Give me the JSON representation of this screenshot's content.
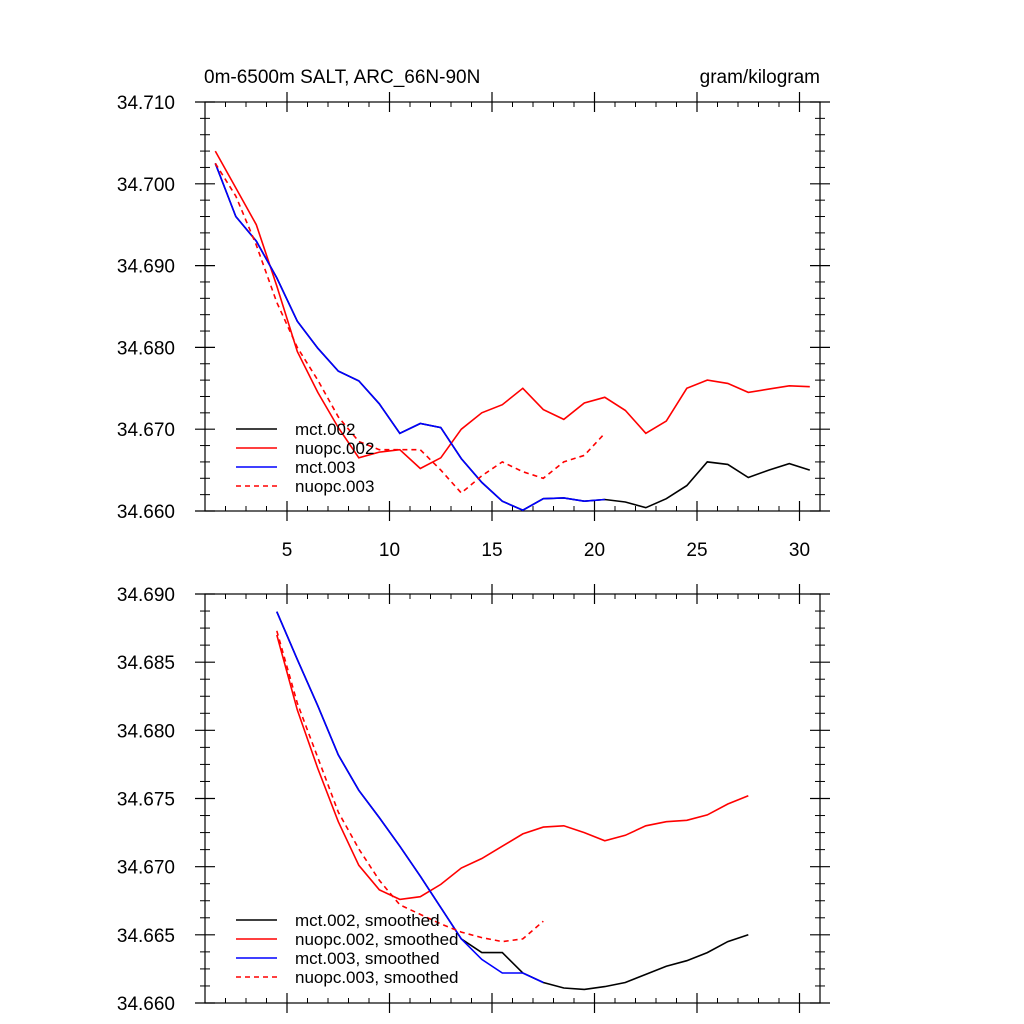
{
  "chart_data": [
    {
      "type": "line",
      "title_left": "0m-6500m SALT, ARC_66N-90N",
      "title_right": "gram/kilogram",
      "xlim": [
        1,
        31
      ],
      "ylim": [
        34.66,
        34.71
      ],
      "xticks": [
        5,
        10,
        15,
        20,
        25,
        30
      ],
      "xtick_labels": [
        "5",
        "10",
        "15",
        "20",
        "25",
        "30"
      ],
      "yticks": [
        34.66,
        34.67,
        34.68,
        34.69,
        34.7,
        34.71
      ],
      "ytick_labels": [
        "34.660",
        "34.670",
        "34.680",
        "34.690",
        "34.700",
        "34.710"
      ],
      "legend_position": "bottom-left",
      "series": [
        {
          "name": "mct.002",
          "color": "#000000",
          "dash": "solid",
          "x": [
            1.5,
            2.5,
            3.5,
            4.5,
            5.5,
            6.5,
            7.5,
            8.5,
            9.5,
            10.5,
            11.5,
            12.5,
            13.5,
            14.5,
            15.5,
            16.5,
            17.5,
            18.5,
            19.5,
            20.5,
            21.5,
            22.5,
            23.5,
            24.5,
            25.5,
            26.5,
            27.5,
            28.5,
            29.5,
            30.5
          ],
          "y": [
            34.7025,
            34.696,
            34.693,
            34.6885,
            34.6832,
            34.6799,
            34.6771,
            34.6759,
            34.6731,
            34.6695,
            34.6707,
            34.6702,
            34.6664,
            34.6635,
            34.6612,
            34.6601,
            34.6615,
            34.6616,
            34.6612,
            34.6614,
            34.6611,
            34.6604,
            34.6615,
            34.6631,
            34.666,
            34.6657,
            34.6641,
            34.665,
            34.6658,
            34.665
          ]
        },
        {
          "name": "nuopc.002",
          "color": "#ff0000",
          "dash": "solid",
          "x": [
            1.5,
            2.5,
            3.5,
            4.5,
            5.5,
            6.5,
            7.5,
            8.5,
            9.5,
            10.5,
            11.5,
            12.5,
            13.5,
            14.5,
            15.5,
            16.5,
            17.5,
            18.5,
            19.5,
            20.5,
            21.5,
            22.5,
            23.5,
            24.5,
            25.5,
            26.5,
            27.5,
            28.5,
            29.5,
            30.5
          ],
          "y": [
            34.704,
            34.6995,
            34.695,
            34.6875,
            34.6795,
            34.6745,
            34.6702,
            34.6665,
            34.6672,
            34.6675,
            34.6652,
            34.6665,
            34.67,
            34.672,
            34.673,
            34.675,
            34.6724,
            34.6712,
            34.6732,
            34.6739,
            34.6723,
            34.6695,
            34.671,
            34.675,
            34.676,
            34.6756,
            34.6745,
            34.6749,
            34.6753,
            34.6752
          ]
        },
        {
          "name": "mct.003",
          "color": "#0000ff",
          "dash": "solid",
          "x": [
            1.5,
            2.5,
            3.5,
            4.5,
            5.5,
            6.5,
            7.5,
            8.5,
            9.5,
            10.5,
            11.5,
            12.5,
            13.5,
            14.5,
            15.5,
            16.5,
            17.5,
            18.5,
            19.5,
            20.5
          ],
          "y": [
            34.7025,
            34.696,
            34.693,
            34.6885,
            34.6832,
            34.6799,
            34.6771,
            34.6759,
            34.6731,
            34.6695,
            34.6707,
            34.6702,
            34.6664,
            34.6635,
            34.6612,
            34.6601,
            34.6615,
            34.6616,
            34.6612,
            34.6614
          ]
        },
        {
          "name": "nuopc.003",
          "color": "#ff0000",
          "dash": "dashed",
          "x": [
            1.5,
            2.5,
            3.5,
            4.5,
            5.5,
            6.5,
            7.5,
            8.5,
            9.5,
            10.5,
            11.5,
            12.5,
            13.5,
            14.5,
            15.5,
            16.5,
            17.5,
            18.5,
            19.5,
            20.5
          ],
          "y": [
            34.7025,
            34.6985,
            34.6925,
            34.6855,
            34.68,
            34.676,
            34.6715,
            34.6685,
            34.6675,
            34.6675,
            34.6675,
            34.665,
            34.6622,
            34.6643,
            34.666,
            34.6648,
            34.664,
            34.666,
            34.6668,
            34.6695
          ]
        }
      ]
    },
    {
      "type": "line",
      "xlim": [
        1,
        31
      ],
      "ylim": [
        34.66,
        34.69
      ],
      "xticks": [
        5,
        10,
        15,
        20,
        25,
        30
      ],
      "yticks": [
        34.66,
        34.665,
        34.67,
        34.675,
        34.68,
        34.685,
        34.69
      ],
      "ytick_labels": [
        "34.660",
        "34.665",
        "34.670",
        "34.675",
        "34.680",
        "34.685",
        "34.690"
      ],
      "legend_position": "bottom-left",
      "series": [
        {
          "name": "mct.002, smoothed",
          "color": "#000000",
          "dash": "solid",
          "x": [
            4.5,
            5.5,
            6.5,
            7.5,
            8.5,
            9.5,
            10.5,
            11.5,
            12.5,
            13.5,
            14.5,
            15.5,
            16.5,
            17.5,
            18.5,
            19.5,
            20.5,
            21.5,
            22.5,
            23.5,
            24.5,
            25.5,
            26.5,
            27.5
          ],
          "y": [
            34.6887,
            34.6852,
            34.6818,
            34.6782,
            34.6756,
            34.6736,
            34.6715,
            34.6693,
            34.667,
            34.6647,
            34.6637,
            34.6637,
            34.6622,
            34.6615,
            34.6611,
            34.661,
            34.6612,
            34.6615,
            34.6621,
            34.6627,
            34.6631,
            34.6637,
            34.6645,
            34.665
          ]
        },
        {
          "name": "nuopc.002, smoothed",
          "color": "#ff0000",
          "dash": "solid",
          "x": [
            4.5,
            5.5,
            6.5,
            7.5,
            8.5,
            9.5,
            10.5,
            11.5,
            12.5,
            13.5,
            14.5,
            15.5,
            16.5,
            17.5,
            18.5,
            19.5,
            20.5,
            21.5,
            22.5,
            23.5,
            24.5,
            25.5,
            26.5,
            27.5
          ],
          "y": [
            34.687,
            34.6815,
            34.6772,
            34.6733,
            34.6701,
            34.6683,
            34.6676,
            34.6678,
            34.6687,
            34.6699,
            34.6706,
            34.6715,
            34.6724,
            34.6729,
            34.673,
            34.6725,
            34.6719,
            34.6723,
            34.673,
            34.6733,
            34.6734,
            34.6738,
            34.6746,
            34.6752
          ]
        },
        {
          "name": "mct.003, smoothed",
          "color": "#0000ff",
          "dash": "solid",
          "x": [
            4.5,
            5.5,
            6.5,
            7.5,
            8.5,
            9.5,
            10.5,
            11.5,
            12.5,
            13.5,
            14.5,
            15.5,
            16.5,
            17.5
          ],
          "y": [
            34.6887,
            34.6852,
            34.6818,
            34.6782,
            34.6756,
            34.6736,
            34.6715,
            34.6693,
            34.667,
            34.6647,
            34.6632,
            34.6622,
            34.6622,
            34.6615
          ]
        },
        {
          "name": "nuopc.003, smoothed",
          "color": "#ff0000",
          "dash": "dashed",
          "x": [
            4.5,
            5.5,
            6.5,
            7.5,
            8.5,
            9.5,
            10.5,
            11.5,
            12.5,
            13.5,
            14.5,
            15.5,
            16.5,
            17.5
          ],
          "y": [
            34.6873,
            34.682,
            34.678,
            34.674,
            34.6713,
            34.669,
            34.6672,
            34.6665,
            34.6658,
            34.6652,
            34.6648,
            34.6645,
            34.6647,
            34.666
          ]
        }
      ]
    }
  ]
}
